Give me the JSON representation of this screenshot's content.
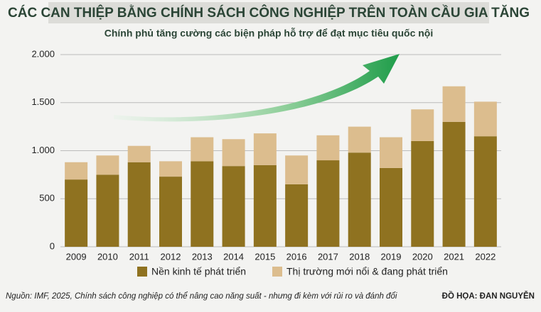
{
  "chart_data": {
    "type": "stacked_bar",
    "title": "CÁC CAN THIỆP BẰNG CHÍNH SÁCH CÔNG NGHIỆP TRÊN TOÀN CẦU GIA TĂNG",
    "subtitle": "Chính phủ tăng cường các biện pháp hỗ trợ để đạt mục tiêu quốc nội",
    "categories": [
      "2009",
      "2010",
      "2011",
      "2012",
      "2013",
      "2014",
      "2015",
      "2016",
      "2017",
      "2018",
      "2019",
      "2020",
      "2021",
      "2022"
    ],
    "series": [
      {
        "name": "Nền kinh tế phát triển",
        "color": "#8f7220",
        "values": [
          700,
          750,
          880,
          730,
          890,
          840,
          850,
          650,
          900,
          980,
          820,
          1100,
          1300,
          1150
        ]
      },
      {
        "name": "Thị trường mới nổi & đang phát triển",
        "color": "#dcbd8e",
        "values": [
          180,
          200,
          170,
          160,
          250,
          280,
          330,
          300,
          260,
          270,
          320,
          330,
          370,
          360
        ]
      }
    ],
    "ylim": [
      0,
      2000
    ],
    "yticks": [
      0,
      500,
      {
        "value": 1000,
        "label": "1.000"
      },
      {
        "value": 1500,
        "label": "1.500"
      },
      {
        "value": 2000,
        "label": "2.000"
      }
    ],
    "grid": true,
    "source": "Nguồn: IMF, 2025, Chính sách công nghiệp có thể nâng cao năng suất - nhưng đi kèm với rủi ro và đánh đổi",
    "credit": "ĐỒ HỌA: ĐAN NGUYỄN"
  }
}
